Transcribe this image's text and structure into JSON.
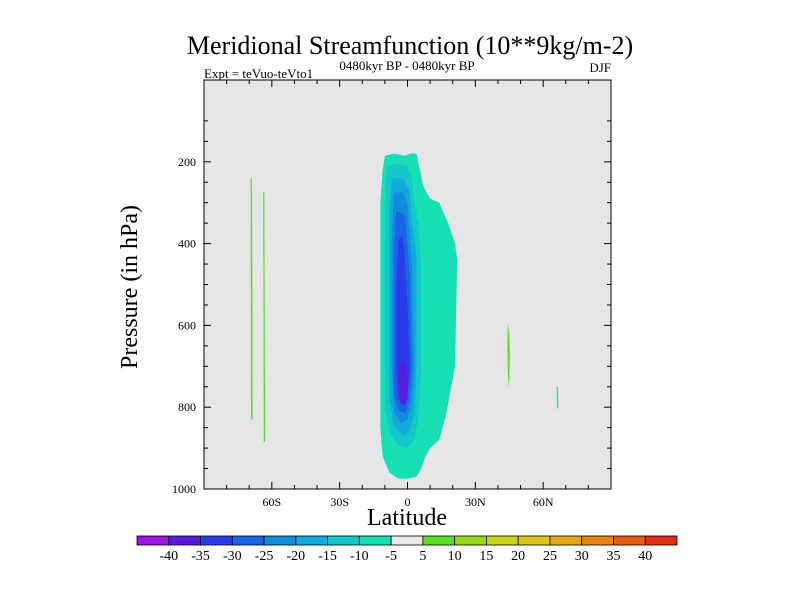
{
  "chart_data": {
    "type": "heatmap",
    "title": "Meridional Streamfunction (10**9kg/m-2)",
    "left_string": "Expt = teVuo-teVto1",
    "center_string": "0480kyr BP - 0480kyr BP",
    "right_string": "DJF",
    "xlabel": "Latitude",
    "ylabel": "Pressure (in hPa)",
    "xlim": [
      -90,
      90
    ],
    "ylim": [
      0,
      1000
    ],
    "y_reversed": true,
    "x_ticks": [
      {
        "value": -60,
        "label": "60S"
      },
      {
        "value": -30,
        "label": "30S"
      },
      {
        "value": 0,
        "label": "0"
      },
      {
        "value": 30,
        "label": "30N"
      },
      {
        "value": 60,
        "label": "60N"
      }
    ],
    "y_ticks": [
      {
        "value": 200,
        "label": "200"
      },
      {
        "value": 400,
        "label": "400"
      },
      {
        "value": 600,
        "label": "600"
      },
      {
        "value": 800,
        "label": "800"
      },
      {
        "value": 1000,
        "label": "1000"
      }
    ],
    "background_color": "#e6e6e6",
    "colorbar": {
      "labels": [
        "-40",
        "-35",
        "-30",
        "-25",
        "-20",
        "-15",
        "-10",
        "-5",
        "5",
        "10",
        "15",
        "20",
        "25",
        "30",
        "35",
        "40"
      ],
      "colors": [
        "#9a14e6",
        "#5a1ae0",
        "#2a3ce8",
        "#1a64e8",
        "#128cdc",
        "#12aadc",
        "#14c8c8",
        "#16e0b4",
        "#ebebeb",
        "#5cde28",
        "#96d818",
        "#c8d41a",
        "#e2c418",
        "#e6a814",
        "#e68414",
        "#e65c14",
        "#e02c10"
      ]
    },
    "contours": [
      {
        "level": "-5",
        "color": "#16e0b4",
        "points": [
          [
            -10,
            185
          ],
          [
            -6,
            180
          ],
          [
            -1,
            185
          ],
          [
            1,
            180
          ],
          [
            4,
            180
          ],
          [
            7,
            260
          ],
          [
            10,
            290
          ],
          [
            14,
            300
          ],
          [
            18,
            350
          ],
          [
            21,
            400
          ],
          [
            22,
            440
          ],
          [
            21,
            700
          ],
          [
            17,
            820
          ],
          [
            14,
            880
          ],
          [
            10,
            900
          ],
          [
            8,
            920
          ],
          [
            6,
            950
          ],
          [
            4,
            970
          ],
          [
            0,
            975
          ],
          [
            -4,
            975
          ],
          [
            -8,
            960
          ],
          [
            -11,
            920
          ],
          [
            -12,
            850
          ],
          [
            -12,
            700
          ],
          [
            -12,
            500
          ],
          [
            -12,
            300
          ],
          [
            -11,
            220
          ]
        ]
      },
      {
        "level": "-10",
        "color": "#14c8c8",
        "points": [
          [
            -9,
            210
          ],
          [
            -4,
            205
          ],
          [
            0,
            210
          ],
          [
            2,
            240
          ],
          [
            3,
            300
          ],
          [
            5,
            350
          ],
          [
            6,
            450
          ],
          [
            6,
            700
          ],
          [
            5,
            820
          ],
          [
            3,
            880
          ],
          [
            0,
            900
          ],
          [
            -4,
            895
          ],
          [
            -8,
            860
          ],
          [
            -10,
            800
          ],
          [
            -10,
            500
          ],
          [
            -10,
            300
          ]
        ]
      },
      {
        "level": "-15",
        "color": "#12aadc",
        "points": [
          [
            -7,
            240
          ],
          [
            -2,
            240
          ],
          [
            1,
            270
          ],
          [
            2,
            350
          ],
          [
            4,
            430
          ],
          [
            4,
            700
          ],
          [
            3,
            810
          ],
          [
            1,
            860
          ],
          [
            -2,
            870
          ],
          [
            -6,
            845
          ],
          [
            -8,
            780
          ],
          [
            -8,
            500
          ],
          [
            -8,
            330
          ]
        ]
      },
      {
        "level": "-20",
        "color": "#128cdc",
        "points": [
          [
            -6,
            275
          ],
          [
            -2,
            275
          ],
          [
            0,
            300
          ],
          [
            1,
            380
          ],
          [
            2,
            460
          ],
          [
            3,
            700
          ],
          [
            2,
            790
          ],
          [
            0,
            830
          ],
          [
            -3,
            840
          ],
          [
            -6,
            810
          ],
          [
            -7,
            700
          ],
          [
            -7,
            400
          ]
        ]
      },
      {
        "level": "-25",
        "color": "#1a64e8",
        "points": [
          [
            -5,
            320
          ],
          [
            -1,
            330
          ],
          [
            0,
            400
          ],
          [
            1,
            480
          ],
          [
            2,
            700
          ],
          [
            1,
            780
          ],
          [
            -1,
            815
          ],
          [
            -4,
            810
          ],
          [
            -6,
            770
          ],
          [
            -6,
            600
          ],
          [
            -6,
            420
          ]
        ]
      },
      {
        "level": "-30",
        "color": "#2a3ce8",
        "points": [
          [
            -4,
            390
          ],
          [
            -2,
            380
          ],
          [
            -1,
            450
          ],
          [
            0,
            550
          ],
          [
            1,
            700
          ],
          [
            0,
            770
          ],
          [
            -2,
            795
          ],
          [
            -4,
            780
          ],
          [
            -5,
            700
          ],
          [
            -5,
            500
          ]
        ]
      },
      {
        "level": "-35",
        "color": "#5a1ae0",
        "points": [
          [
            -3,
            690
          ],
          [
            -1,
            690
          ],
          [
            0,
            730
          ],
          [
            0,
            780
          ],
          [
            -1,
            795
          ],
          [
            -3,
            790
          ],
          [
            -4,
            760
          ],
          [
            -4,
            720
          ]
        ]
      },
      {
        "level": "5",
        "color": "#5cde28",
        "points": [
          [
            -69.4,
            240
          ],
          [
            -68.8,
            240
          ],
          [
            -68.6,
            500
          ],
          [
            -68.5,
            830
          ],
          [
            -69.2,
            830
          ],
          [
            -69.3,
            500
          ]
        ]
      },
      {
        "level": "5",
        "color": "#5cde28",
        "points": [
          [
            -63.8,
            275
          ],
          [
            -63.3,
            275
          ],
          [
            -63.1,
            600
          ],
          [
            -63.0,
            885
          ],
          [
            -63.6,
            885
          ],
          [
            -63.7,
            600
          ]
        ]
      },
      {
        "level": "5",
        "color": "#5cde28",
        "points": [
          [
            44.3,
            590
          ],
          [
            44.9,
            620
          ],
          [
            45.3,
            660
          ],
          [
            45.1,
            720
          ],
          [
            44.8,
            755
          ],
          [
            44.4,
            720
          ],
          [
            44.2,
            660
          ]
        ]
      },
      {
        "level": "-5",
        "color": "#16e0b4",
        "points": [
          [
            66.0,
            750
          ],
          [
            66.6,
            750
          ],
          [
            66.7,
            800
          ],
          [
            66.1,
            805
          ]
        ]
      }
    ]
  }
}
